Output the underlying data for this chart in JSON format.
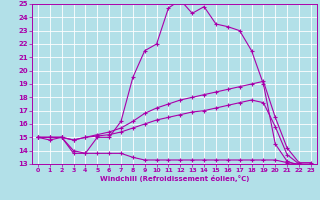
{
  "xlabel": "Windchill (Refroidissement éolien,°C)",
  "xlim": [
    -0.5,
    23.5
  ],
  "ylim": [
    13,
    25
  ],
  "xticks": [
    0,
    1,
    2,
    3,
    4,
    5,
    6,
    7,
    8,
    9,
    10,
    11,
    12,
    13,
    14,
    15,
    16,
    17,
    18,
    19,
    20,
    21,
    22,
    23
  ],
  "yticks": [
    13,
    14,
    15,
    16,
    17,
    18,
    19,
    20,
    21,
    22,
    23,
    24,
    25
  ],
  "bg_color": "#b2e0e8",
  "grid_color": "#ffffff",
  "line_color": "#aa00aa",
  "lines": [
    {
      "x": [
        0,
        1,
        2,
        3,
        4,
        5,
        6,
        7,
        8,
        9,
        10,
        11,
        12,
        13,
        14,
        15,
        16,
        17,
        18,
        19,
        20,
        21,
        22,
        23
      ],
      "y": [
        15,
        14.8,
        15,
        13.8,
        13.8,
        15,
        15,
        16.2,
        19.5,
        21.5,
        22.0,
        24.7,
        25.3,
        24.3,
        24.8,
        23.5,
        23.3,
        23.0,
        21.5,
        19.0,
        14.5,
        13.2,
        12.9,
        12.9
      ]
    },
    {
      "x": [
        0,
        1,
        2,
        3,
        4,
        5,
        6,
        7,
        8,
        9,
        10,
        11,
        12,
        13,
        14,
        15,
        16,
        17,
        18,
        19,
        20,
        21,
        22,
        23
      ],
      "y": [
        15,
        15,
        15,
        14.8,
        15,
        15.2,
        15.4,
        15.7,
        16.2,
        16.8,
        17.2,
        17.5,
        17.8,
        18.0,
        18.2,
        18.4,
        18.6,
        18.8,
        19.0,
        19.2,
        16.5,
        14.2,
        13.1,
        13.1
      ]
    },
    {
      "x": [
        0,
        1,
        2,
        3,
        4,
        5,
        6,
        7,
        8,
        9,
        10,
        11,
        12,
        13,
        14,
        15,
        16,
        17,
        18,
        19,
        20,
        21,
        22,
        23
      ],
      "y": [
        15,
        15,
        15,
        14.8,
        15,
        15.1,
        15.2,
        15.4,
        15.7,
        16.0,
        16.3,
        16.5,
        16.7,
        16.9,
        17.0,
        17.2,
        17.4,
        17.6,
        17.8,
        17.6,
        15.8,
        13.7,
        13.0,
        13.0
      ]
    },
    {
      "x": [
        0,
        1,
        2,
        3,
        4,
        5,
        6,
        7,
        8,
        9,
        10,
        11,
        12,
        13,
        14,
        15,
        16,
        17,
        18,
        19,
        20,
        21,
        22,
        23
      ],
      "y": [
        15,
        15,
        15,
        14.0,
        13.8,
        13.8,
        13.8,
        13.8,
        13.5,
        13.3,
        13.3,
        13.3,
        13.3,
        13.3,
        13.3,
        13.3,
        13.3,
        13.3,
        13.3,
        13.3,
        13.3,
        13.1,
        13.0,
        12.9
      ]
    }
  ]
}
